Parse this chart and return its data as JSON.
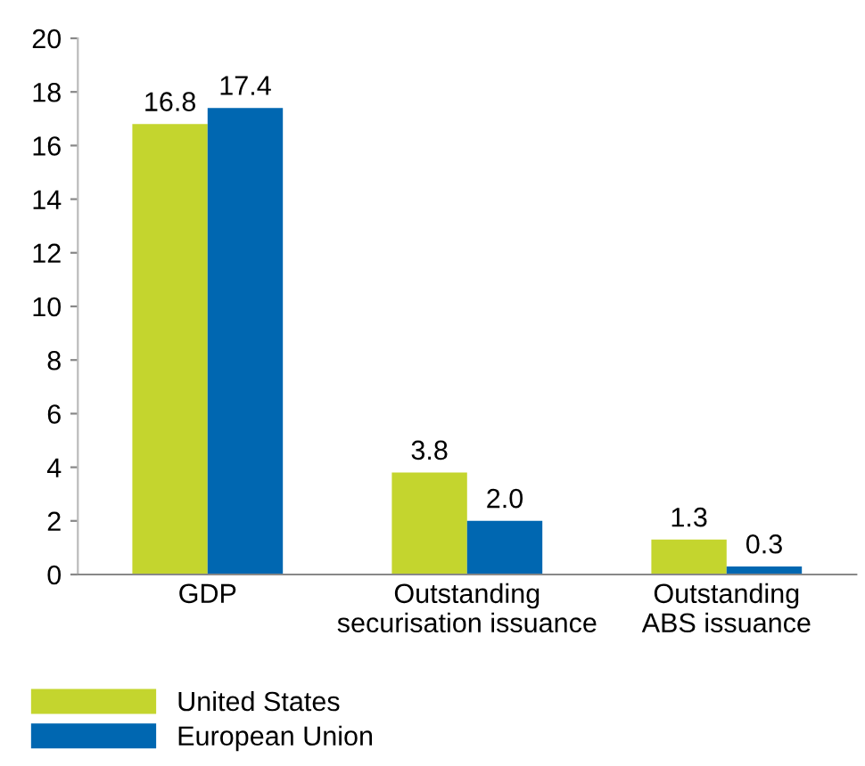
{
  "chart_data": {
    "type": "bar",
    "categories": [
      "GDP",
      "Outstanding\nsecurisation issuance",
      "Outstanding\nABS issuance"
    ],
    "series": [
      {
        "name": "United States",
        "color": "#c4d52e",
        "values": [
          16.8,
          3.8,
          1.3
        ],
        "value_labels": [
          "16.8",
          "3.8",
          "1.3"
        ]
      },
      {
        "name": "European Union",
        "color": "#0067b1",
        "values": [
          17.4,
          2.0,
          0.3
        ],
        "value_labels": [
          "17.4",
          "2.0",
          "0.3"
        ]
      }
    ],
    "ylim": [
      0,
      20
    ],
    "yticks": [
      0,
      2,
      4,
      6,
      8,
      10,
      12,
      14,
      16,
      18,
      20
    ],
    "grid": false,
    "legend": "bottom left"
  }
}
